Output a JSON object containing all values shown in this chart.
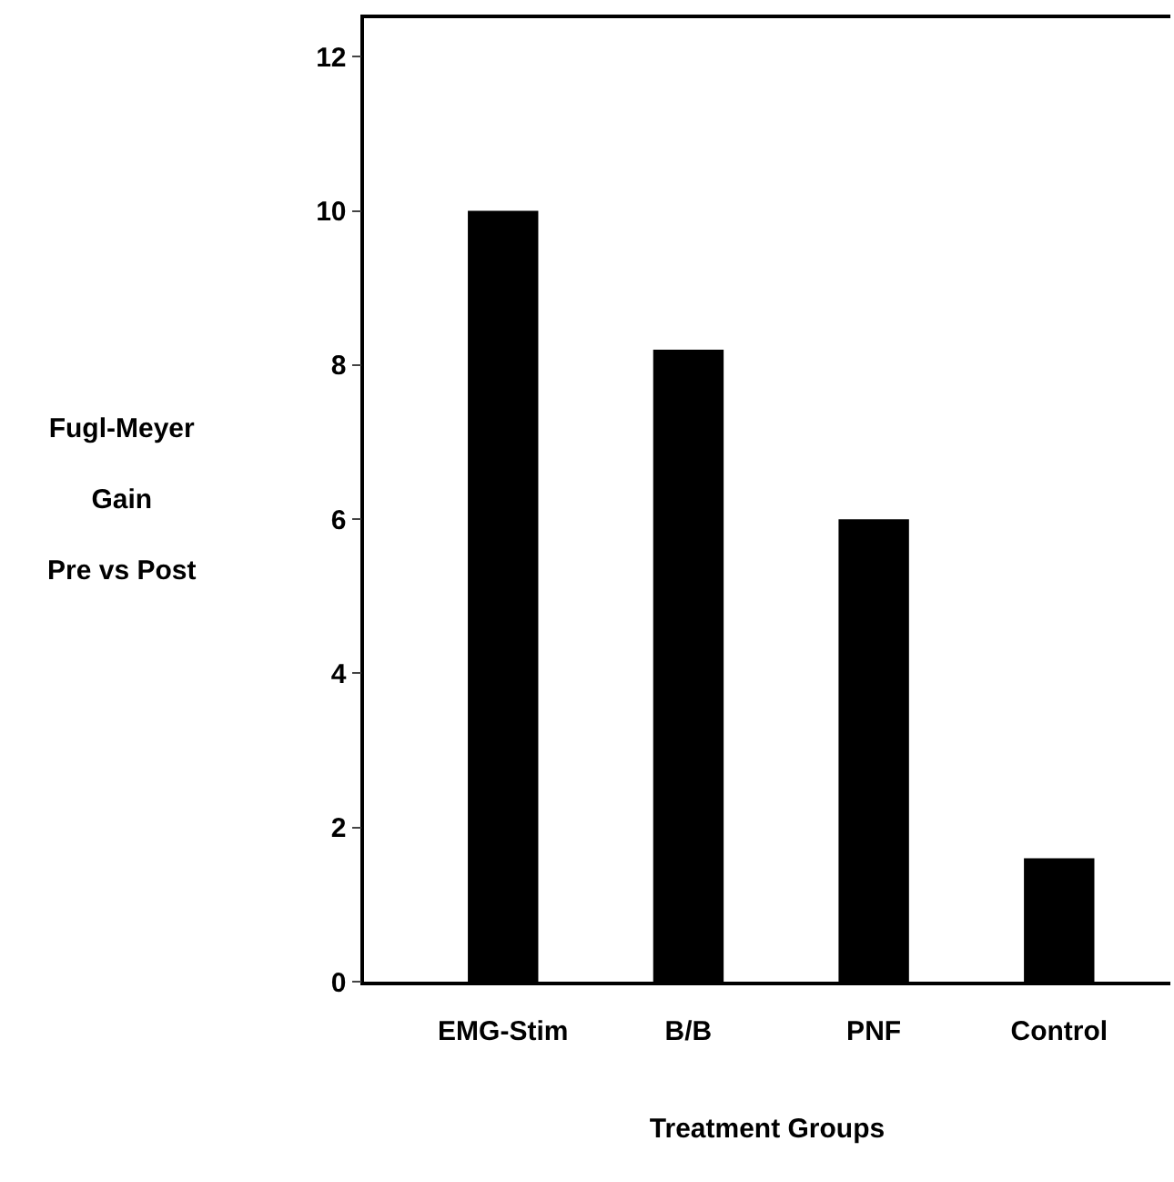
{
  "chart_data": {
    "type": "bar",
    "xlabel": "Treatment Groups",
    "ylabel": "Fugl-Meyer\nGain\nPre vs Post",
    "categories": [
      "EMG-Stim",
      "B/B",
      "PNF",
      "Control"
    ],
    "values": [
      10,
      8.2,
      6,
      1.6
    ],
    "color": "#000000",
    "ylim": [
      0,
      12.5
    ],
    "yticks": [
      0,
      2,
      4,
      6,
      8,
      10,
      12
    ]
  }
}
